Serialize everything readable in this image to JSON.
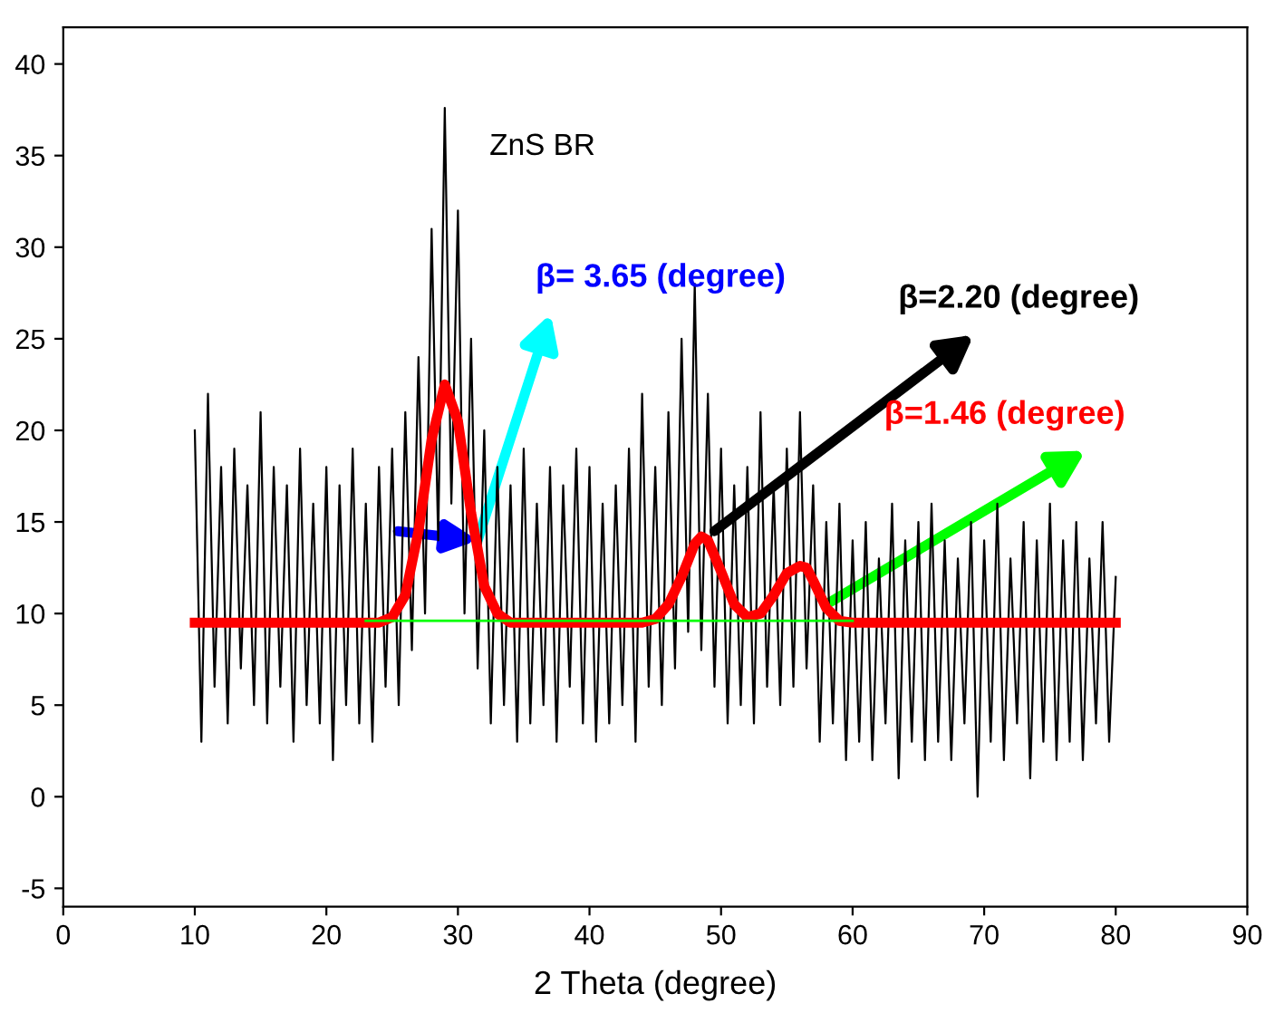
{
  "chart_data": {
    "type": "line",
    "title": "ZnS BR",
    "xlabel": "2 Theta (degree)",
    "xlim": [
      0,
      90
    ],
    "ylim": [
      -6,
      42
    ],
    "xticks": [
      0,
      10,
      20,
      30,
      40,
      50,
      60,
      70,
      80,
      90
    ],
    "yticks": [
      -5,
      0,
      5,
      10,
      15,
      20,
      25,
      30,
      35,
      40
    ],
    "grid": false,
    "legend": false,
    "marker": "none",
    "line_style": "solid",
    "series": [
      {
        "color": "#000000",
        "x": [
          10,
          10.5,
          11,
          11.5,
          12,
          12.5,
          13,
          13.5,
          14,
          14.5,
          15,
          15.5,
          16,
          16.5,
          17,
          17.5,
          18,
          18.5,
          19,
          19.5,
          20,
          20.5,
          21,
          21.5,
          22,
          22.5,
          23,
          23.5,
          24,
          24.5,
          25,
          25.5,
          26,
          26.5,
          27,
          27.5,
          28,
          28.5,
          29,
          29.5,
          30,
          30.5,
          31,
          31.5,
          32,
          32.5,
          33,
          33.5,
          34,
          34.5,
          35,
          35.5,
          36,
          36.5,
          37,
          37.5,
          38,
          38.5,
          39,
          39.5,
          40,
          40.5,
          41,
          41.5,
          42,
          42.5,
          43,
          43.5,
          44,
          44.5,
          45,
          45.5,
          46,
          46.5,
          47,
          47.5,
          48,
          48.5,
          49,
          49.5,
          50,
          50.5,
          51,
          51.5,
          52,
          52.5,
          53,
          53.5,
          54,
          54.5,
          55,
          55.5,
          56,
          56.5,
          57,
          57.5,
          58,
          58.5,
          59,
          59.5,
          60,
          60.5,
          61,
          61.5,
          62,
          62.5,
          63,
          63.5,
          64,
          64.5,
          65,
          65.5,
          66,
          66.5,
          67,
          67.5,
          68,
          68.5,
          69,
          69.5,
          70,
          70.5,
          71,
          71.5,
          72,
          72.5,
          73,
          73.5,
          74,
          74.5,
          75,
          75.5,
          76,
          76.5,
          77,
          77.5,
          78,
          78.5,
          79,
          79.5,
          80
        ],
        "values": [
          20,
          3,
          22,
          6,
          18,
          4,
          19,
          7,
          17,
          5,
          21,
          4,
          18,
          6,
          17,
          3,
          19,
          5,
          16,
          4,
          18,
          2,
          17,
          5,
          19,
          4,
          16,
          3,
          18,
          6,
          19,
          5,
          21,
          8,
          24,
          10,
          31,
          14,
          37.6,
          16,
          32,
          10,
          25,
          7,
          20,
          4,
          18,
          5,
          17,
          3,
          19,
          4,
          16,
          5,
          18,
          3,
          17,
          6,
          19,
          4,
          18,
          3,
          16,
          4,
          17,
          5,
          19,
          3,
          22,
          6,
          18,
          5,
          21,
          7,
          25,
          9,
          28,
          8,
          22,
          6,
          19,
          4,
          17,
          5,
          18,
          4,
          21,
          6,
          17,
          5,
          19,
          6,
          21,
          7,
          17,
          3,
          15,
          4,
          16,
          2,
          14,
          3,
          15,
          2,
          13,
          4,
          16,
          1,
          14,
          3,
          15,
          2,
          16,
          3,
          14,
          2,
          13,
          4,
          15,
          0,
          14,
          3,
          16,
          2,
          13,
          4,
          15,
          1,
          14,
          3,
          16,
          2,
          14,
          3,
          15,
          2,
          13,
          4,
          15,
          3,
          12
        ]
      },
      {
        "color": "#ff0000",
        "x": [
          10,
          24,
          25,
          26,
          27,
          28,
          29,
          30,
          31,
          32,
          33,
          34,
          44,
          45,
          46,
          47,
          48,
          48.5,
          49,
          50,
          51,
          52,
          53,
          54,
          55,
          56,
          56.5,
          57,
          58,
          59,
          60,
          80
        ],
        "values": [
          9.5,
          9.5,
          9.8,
          11,
          14.5,
          19.5,
          22.5,
          20.5,
          15.5,
          11.5,
          10,
          9.5,
          9.5,
          9.7,
          10.5,
          12,
          13.8,
          14.2,
          14,
          12.3,
          10.5,
          9.8,
          10,
          11,
          12.2,
          12.6,
          12.5,
          11.8,
          10.3,
          9.6,
          9.5,
          9.5
        ]
      },
      {
        "color": "#00ff00",
        "x": [
          23,
          60
        ],
        "values": [
          9.6,
          9.6
        ]
      }
    ],
    "annotations": [
      {
        "text": "β= 3.65 (degree)",
        "x": 31.5,
        "y": 14
      },
      {
        "text": "β=2.20 (degree)",
        "x": 49.5,
        "y": 14.5
      },
      {
        "text": "β=1.46 (degree)",
        "x": 58,
        "y": 10.5
      }
    ]
  }
}
